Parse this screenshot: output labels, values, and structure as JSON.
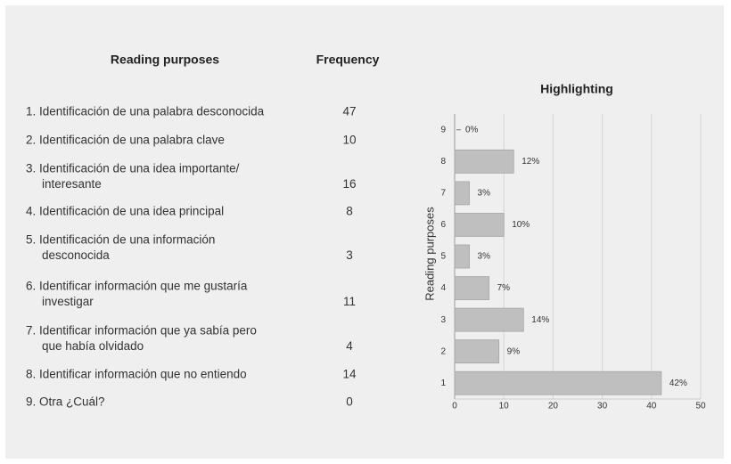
{
  "table": {
    "headers": [
      "Reading purposes",
      "Frequency"
    ],
    "rows": [
      {
        "label": [
          "1. Identificación de una palabra desconocida"
        ],
        "frequency": 47
      },
      {
        "label": [
          "2. Identificación de una palabra clave"
        ],
        "frequency": 10
      },
      {
        "label": [
          "3. Identificación de una idea importante/",
          "interesante"
        ],
        "frequency": 16
      },
      {
        "label": [
          "4. Identificación de una idea principal"
        ],
        "frequency": 8
      },
      {
        "label": [
          "5. Identificación de una información",
          "desconocida"
        ],
        "frequency": 3
      },
      {
        "label": [
          "6. Identificar información que me gustaría",
          "investigar"
        ],
        "frequency": 11
      },
      {
        "label": [
          "7. Identificar información que ya sabía pero",
          "que había olvidado"
        ],
        "frequency": 4
      },
      {
        "label": [
          "8. Identificar información que no entiendo"
        ],
        "frequency": 14
      },
      {
        "label": [
          "9. Otra ¿Cuál?"
        ],
        "frequency": 0
      }
    ]
  },
  "chart_data": {
    "type": "hbar",
    "title": "Highlighting",
    "y_label": "Reading purposes",
    "categories": [
      "1",
      "2",
      "3",
      "4",
      "5",
      "6",
      "7",
      "8",
      "9"
    ],
    "values": [
      42,
      9,
      14,
      7,
      3,
      10,
      3,
      12,
      0
    ],
    "value_labels": [
      "42%",
      "9%",
      "14%",
      "7%",
      "3%",
      "10%",
      "3%",
      "12%",
      "0%"
    ],
    "color": "#bfbfbf",
    "xlim": [
      0,
      50
    ],
    "xticks": [
      0,
      10,
      20,
      30,
      40,
      50
    ],
    "grid": true
  }
}
